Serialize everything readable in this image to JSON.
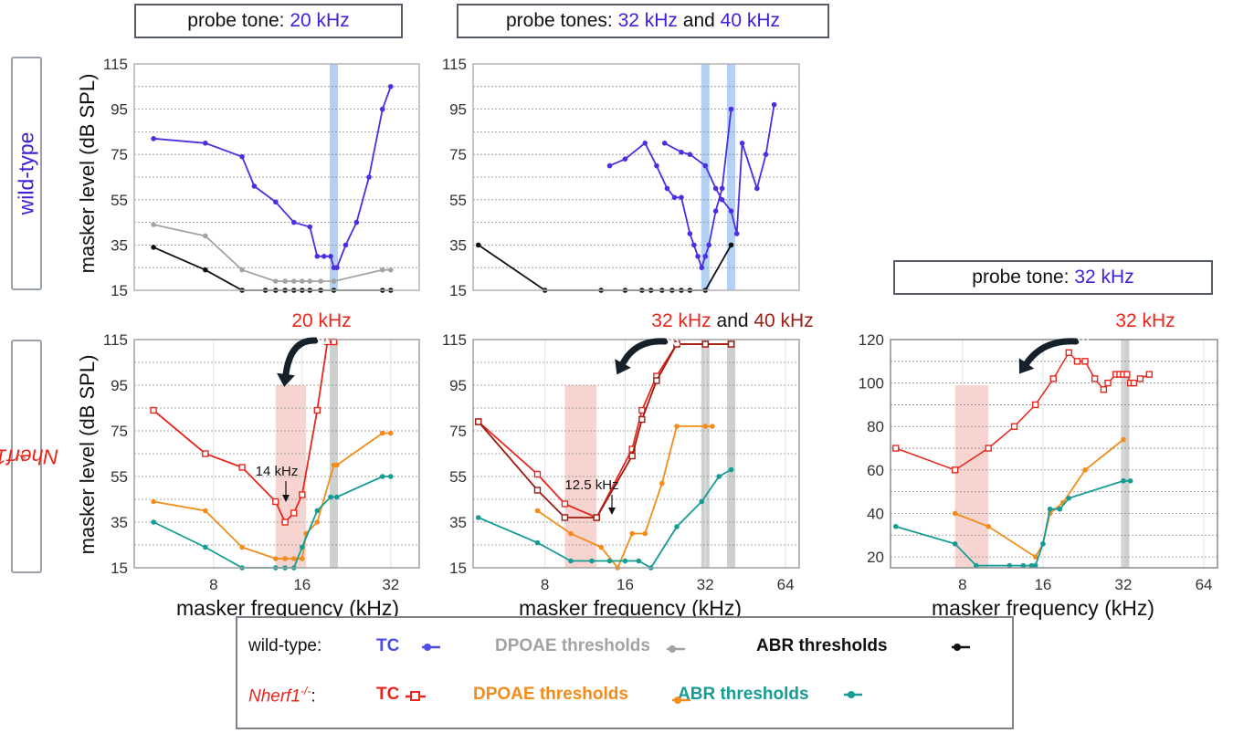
{
  "colors": {
    "wt_tc": "#4b2fe0",
    "wt_dpoae": "#a3a3a3",
    "wt_abr": "#111111",
    "mut_tc": "#e8261c",
    "mut_tc2": "#9e1a10",
    "mut_dpoae": "#f28c1a",
    "mut_abr": "#159c94",
    "probe_blue": "#aaccf4",
    "probe_gray": "#c8ccc8",
    "shade": "#f7d4d0"
  },
  "header": {
    "left": {
      "prefix": "probe tone: ",
      "f1": "20 kHz"
    },
    "mid": {
      "prefix": "probe tones: ",
      "f1": "32 kHz",
      "and": " and ",
      "f2": "40 kHz"
    },
    "right": {
      "prefix": "probe tone: ",
      "f1": "32 kHz"
    }
  },
  "row_labels": {
    "wt": "wild-type",
    "mut_base": "Nherf1",
    "mut_sup": "-/-"
  },
  "axis_labels": {
    "y": "masker level (dB SPL)",
    "x": "masker frequency (kHz)"
  },
  "annotations": {
    "p4_top": "20 kHz",
    "p5_a": "32 kHz",
    "p5_and": " and ",
    "p5_b": "40 kHz",
    "p6_top": "32 kHz",
    "p4_tip": "14 kHz",
    "p5_tip": "12.5 kHz"
  },
  "legend": {
    "wt_label": "wild-type:",
    "mut_label_base": "Nherf1",
    "mut_label_sup": "-/-",
    "mut_label_colon": ":",
    "tc": "TC",
    "dpoae": "DPOAE thresholds",
    "abr": "ABR thresholds"
  },
  "chart_data": [
    {
      "type": "line",
      "id": "wt-20k",
      "ylim": [
        15,
        115
      ],
      "yticks": [
        15,
        35,
        55,
        75,
        95,
        115
      ],
      "xscale": "log2",
      "xlim": [
        4.3,
        40
      ],
      "xticks": [],
      "probe_bands": [
        20.5
      ],
      "series": [
        {
          "name": "TC",
          "color": "#4b2fe0",
          "x": [
            5,
            7.5,
            10,
            11,
            13,
            15,
            17,
            18,
            19,
            20,
            20.5,
            21,
            22.5,
            24.5,
            27,
            30,
            32
          ],
          "y": [
            82,
            80,
            74,
            61,
            54,
            45,
            43,
            30,
            30,
            30,
            25,
            25,
            35,
            45,
            65,
            95,
            105
          ]
        },
        {
          "name": "DPOAE thresholds",
          "color": "#a3a3a3",
          "x": [
            5,
            7.5,
            10,
            13,
            14,
            15,
            16,
            17,
            18.5,
            20.5,
            30,
            32
          ],
          "y": [
            44,
            39,
            24,
            19,
            19,
            19,
            19,
            19,
            19,
            19,
            24,
            24
          ]
        },
        {
          "name": "ABR thresholds",
          "color": "#111111",
          "x": [
            5,
            7.5,
            10,
            12,
            13,
            14,
            15,
            16,
            17,
            18.5,
            20.5,
            30,
            32
          ],
          "y": [
            34,
            24,
            15,
            15,
            15,
            15,
            15,
            15,
            15,
            15,
            15,
            15,
            15
          ]
        }
      ]
    },
    {
      "type": "line",
      "id": "wt-32-40k",
      "ylim": [
        15,
        115
      ],
      "yticks": [
        15,
        35,
        55,
        75,
        95,
        115
      ],
      "xscale": "log2",
      "xlim": [
        4.3,
        72
      ],
      "xticks": [],
      "probe_bands": [
        32,
        40
      ],
      "series": [
        {
          "name": "TC",
          "color": "#4b2fe0",
          "x": [
            14,
            16,
            19,
            21,
            23,
            24.5,
            26,
            28,
            29,
            30,
            31,
            32,
            33,
            35,
            37,
            40
          ],
          "y": [
            70,
            73,
            80,
            70,
            60,
            56,
            56,
            40,
            35,
            30,
            25,
            30,
            35,
            50,
            60,
            95
          ]
        },
        {
          "name": "TC",
          "color": "#4b2fe0",
          "x": [
            22.5,
            26,
            28,
            32,
            35,
            37,
            40,
            42,
            44,
            50,
            54,
            58
          ],
          "y": [
            80,
            76,
            75,
            70,
            60,
            55,
            50,
            40,
            80,
            60,
            75,
            97
          ]
        },
        {
          "name": "ABR thresholds",
          "color": "#111111",
          "x": [
            4.5,
            8,
            13,
            16,
            18.5,
            20,
            22,
            24,
            26,
            28,
            32,
            40
          ],
          "y": [
            35,
            15,
            15,
            15,
            15,
            15,
            15,
            15,
            15,
            15,
            15,
            35
          ]
        }
      ]
    },
    {
      "type": "line",
      "id": "mut-20k",
      "ylim": [
        15,
        115
      ],
      "yticks": [
        15,
        35,
        55,
        75,
        95,
        115
      ],
      "xscale": "log2",
      "xlim": [
        4.3,
        40
      ],
      "xticks": [
        8,
        16,
        32
      ],
      "shade": [
        13,
        16.5
      ],
      "probe_bands": [
        20.5
      ],
      "series": [
        {
          "name": "TC",
          "color": "#e8261c",
          "marker": "square",
          "x": [
            5,
            7.5,
            10,
            13,
            14,
            15,
            16,
            18,
            19.5,
            20.5
          ],
          "y": [
            84,
            65,
            59,
            44,
            35,
            39,
            47,
            84,
            114,
            114
          ]
        },
        {
          "name": "DPOAE thresholds",
          "color": "#f28c1a",
          "x": [
            5,
            7.5,
            10,
            13,
            14,
            15,
            16,
            16.5,
            18,
            20.5,
            21,
            30,
            32
          ],
          "y": [
            44,
            40,
            24,
            19,
            19,
            19,
            19,
            30,
            35,
            60,
            60,
            74,
            74
          ]
        },
        {
          "name": "ABR thresholds",
          "color": "#159c94",
          "x": [
            5,
            7.5,
            10,
            13,
            14,
            15,
            16,
            18,
            20,
            21,
            30,
            32
          ],
          "y": [
            35,
            24,
            15,
            15,
            15,
            15,
            24,
            40,
            46,
            46,
            55,
            55
          ]
        }
      ]
    },
    {
      "type": "line",
      "id": "mut-32-40k",
      "ylim": [
        15,
        115
      ],
      "yticks": [
        15,
        35,
        55,
        75,
        95,
        115
      ],
      "xscale": "log2",
      "xlim": [
        4.3,
        72
      ],
      "xticks": [
        8,
        16,
        32,
        64
      ],
      "shade": [
        9.5,
        12.5
      ],
      "probe_bands": [
        32,
        40
      ],
      "series": [
        {
          "name": "TC",
          "color": "#e8261c",
          "marker": "square",
          "x": [
            4.5,
            7.5,
            9.5,
            12.5,
            17,
            18.5,
            21,
            25,
            32,
            40
          ],
          "y": [
            79,
            56,
            43,
            37,
            67,
            84,
            99,
            113,
            113,
            113
          ]
        },
        {
          "name": "TC",
          "color": "#9e1a10",
          "marker": "square",
          "x": [
            4.5,
            7.5,
            9.5,
            12.5,
            17,
            18.5,
            21,
            25,
            32,
            40
          ],
          "y": [
            79,
            49,
            37,
            37,
            64,
            80,
            97,
            113,
            113,
            113
          ]
        },
        {
          "name": "DPOAE thresholds",
          "color": "#f28c1a",
          "x": [
            7.5,
            10,
            13,
            15,
            17,
            19,
            22,
            25,
            32,
            34
          ],
          "y": [
            40,
            30,
            24,
            15,
            30,
            30,
            52,
            77,
            77,
            77
          ]
        },
        {
          "name": "ABR thresholds",
          "color": "#159c94",
          "x": [
            4.5,
            7.5,
            10,
            12,
            14,
            16,
            18,
            20,
            25,
            31,
            36,
            40
          ],
          "y": [
            37,
            26,
            18,
            18,
            18,
            18,
            18,
            15,
            33,
            44,
            55,
            58
          ]
        }
      ]
    },
    {
      "type": "line",
      "id": "mut-32k",
      "ylim": [
        15,
        120
      ],
      "yticks": [
        20,
        40,
        60,
        80,
        100,
        120
      ],
      "xscale": "log2",
      "xlim": [
        4.3,
        72
      ],
      "xticks": [
        8,
        16,
        32,
        64
      ],
      "shade": [
        7.5,
        10
      ],
      "probe_bands": [
        32.5
      ],
      "series": [
        {
          "name": "TC",
          "color": "#e8261c",
          "marker": "square",
          "x": [
            4.5,
            7.5,
            10,
            12.5,
            15,
            17.5,
            20,
            21.5,
            23,
            25,
            27,
            28,
            30,
            31,
            32,
            33,
            34,
            35,
            37,
            40
          ],
          "y": [
            70,
            60,
            70,
            80,
            90,
            102,
            114,
            110,
            110,
            102,
            97,
            100,
            104,
            104,
            104,
            104,
            100,
            100,
            102,
            104
          ]
        },
        {
          "name": "DPOAE thresholds",
          "color": "#f28c1a",
          "x": [
            7.5,
            10,
            15,
            16,
            17,
            19,
            23,
            32
          ],
          "y": [
            40,
            34,
            20,
            26,
            40,
            45,
            60,
            74
          ]
        },
        {
          "name": "ABR thresholds",
          "color": "#159c94",
          "x": [
            4.5,
            7.5,
            9,
            12,
            13.5,
            14.5,
            15,
            16,
            17,
            18.5,
            20,
            32,
            34
          ],
          "y": [
            34,
            26,
            16,
            16,
            16,
            16,
            16,
            26,
            42,
            42,
            47,
            55,
            55
          ]
        }
      ]
    }
  ]
}
